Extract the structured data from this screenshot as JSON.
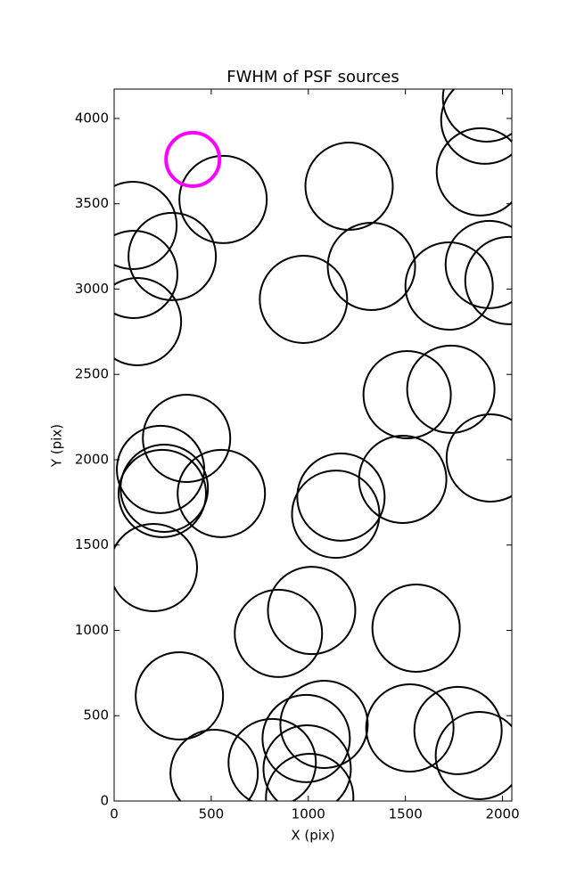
{
  "chart_data": {
    "type": "scatter",
    "title": "FWHM of PSF sources",
    "xlabel": "X (pix)",
    "ylabel": "Y (pix)",
    "xlim": [
      0,
      2048
    ],
    "ylim": [
      0,
      4172
    ],
    "xticks": [
      0,
      500,
      1000,
      1500,
      2000
    ],
    "yticks": [
      0,
      500,
      1000,
      1500,
      2000,
      2500,
      3000,
      3500,
      4000
    ],
    "series": [
      {
        "color": "#000000",
        "x": [
          97,
          101,
          120,
          299,
          561,
          1210,
          975,
          1325,
          1725,
          1932,
          2033,
          1918,
          1909,
          1886,
          1509,
          1734,
          1937,
          1486,
          373,
          239,
          258,
          248,
          552,
          1168,
          1141,
          202,
          1017,
          846,
          1555,
          336,
          1081,
          989,
          814,
          994,
          1007,
          515,
          1523,
          1771,
          1881
        ],
        "y": [
          3373,
          3086,
          2809,
          3191,
          3525,
          3603,
          2940,
          3133,
          3018,
          3144,
          3050,
          4120,
          3990,
          3687,
          2381,
          2413,
          2010,
          1885,
          2125,
          1943,
          1833,
          1802,
          1802,
          1781,
          1681,
          1368,
          1117,
          982,
          1013,
          616,
          449,
          366,
          225,
          188,
          21,
          162,
          428,
          413,
          266
        ]
      },
      {
        "color": "#ff00ff",
        "x": [
          405
        ],
        "y": [
          3760
        ]
      }
    ]
  }
}
